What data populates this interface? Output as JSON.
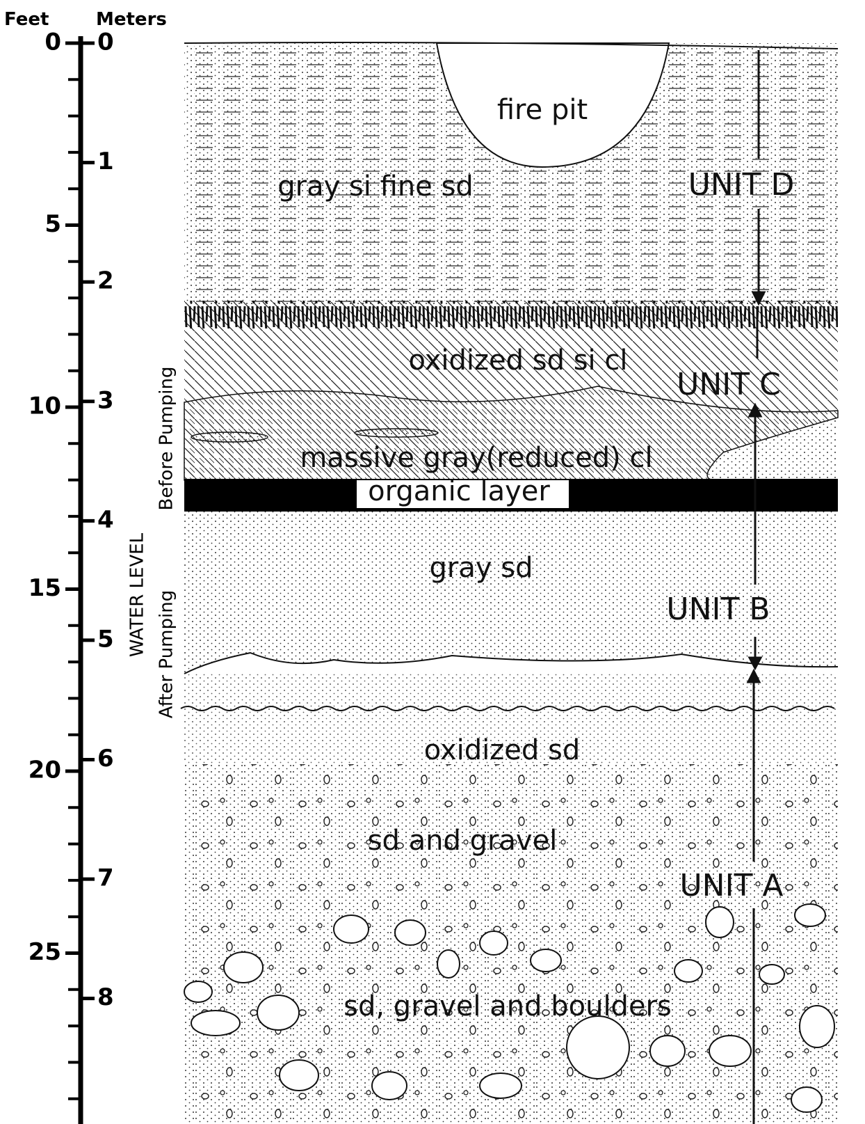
{
  "scale": {
    "feet_label": "Feet",
    "meters_label": "Meters",
    "feet_ticks": [
      0,
      5,
      10,
      15,
      20,
      25
    ],
    "meter_ticks": [
      0,
      1,
      2,
      3,
      4,
      5,
      6,
      7,
      8
    ]
  },
  "water_level": {
    "title": "WATER LEVEL",
    "before": "Before Pumping",
    "after": "After Pumping"
  },
  "layers": {
    "fire_pit": "fire pit",
    "silt_sand": "gray si fine sd",
    "oxidized_clay": "oxidized sd si cl",
    "reduced_clay": "massive gray(reduced) cl",
    "organic": "organic layer",
    "gray_sand": "gray sd",
    "oxidized_sand": "oxidized sd",
    "sand_gravel": "sd and gravel",
    "boulders": "sd, gravel and boulders"
  },
  "units": {
    "d": "UNIT D",
    "c": "UNIT C",
    "b": "UNIT B",
    "a": "UNIT A"
  }
}
